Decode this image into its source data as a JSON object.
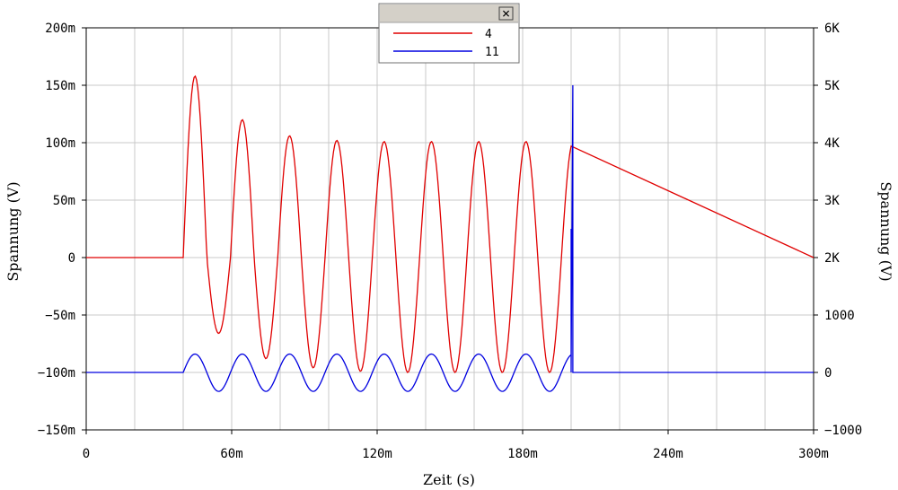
{
  "chart_data": {
    "type": "line",
    "xlabel": "Zeit (s)",
    "ylabel_left": "Spannung (V)",
    "ylabel_right": "Spannung (V)",
    "x_ticks": [
      "0",
      "60m",
      "120m",
      "180m",
      "240m",
      "300m"
    ],
    "x_tick_values": [
      0,
      0.06,
      0.12,
      0.18,
      0.24,
      0.3
    ],
    "y_left_ticks": [
      "200m",
      "150m",
      "100m",
      "50m",
      "0",
      "−50m",
      "−100m",
      "−150m"
    ],
    "y_left_tick_values": [
      0.2,
      0.15,
      0.1,
      0.05,
      0,
      -0.05,
      -0.1,
      -0.15
    ],
    "y_right_ticks": [
      "6K",
      "5K",
      "4K",
      "3K",
      "2K",
      "1000",
      "0",
      "−1000"
    ],
    "y_right_tick_values": [
      6000,
      5000,
      4000,
      3000,
      2000,
      1000,
      0,
      -1000
    ],
    "xlim": [
      0,
      0.3
    ],
    "ylim_left": [
      -0.15,
      0.2
    ],
    "ylim_right": [
      -1000,
      6000
    ],
    "grid": true,
    "legend_placement": "top-center",
    "series": [
      {
        "name": "4",
        "axis": "left",
        "color": "#e00000",
        "start": 0.04,
        "end": 0.2,
        "period": 0.0195,
        "peaks": [
          0.158,
          0.12,
          0.106,
          0.102,
          0.101,
          0.101,
          0.101,
          0.101
        ],
        "troughs": [
          -0.066,
          -0.088,
          -0.096,
          -0.099,
          -0.1,
          -0.1,
          -0.1,
          -0.1
        ],
        "baseline": 0
      },
      {
        "name": "11",
        "axis": "right",
        "color": "#0000e0",
        "start": 0.04,
        "end": 0.2,
        "period": 0.0195,
        "peaks": [
          320,
          320,
          320,
          320,
          320,
          320,
          320,
          320
        ],
        "troughs": [
          -330,
          -330,
          -330,
          -330,
          -330,
          -330,
          -330,
          -330
        ],
        "baseline": 0,
        "spike_x": 0.2,
        "spike_top": 5000,
        "spike_step": 2500
      }
    ]
  },
  "legend": {
    "close_symbol": "✕",
    "items": [
      {
        "label": "4",
        "color": "#e00000"
      },
      {
        "label": "11",
        "color": "#0000e0"
      }
    ]
  }
}
